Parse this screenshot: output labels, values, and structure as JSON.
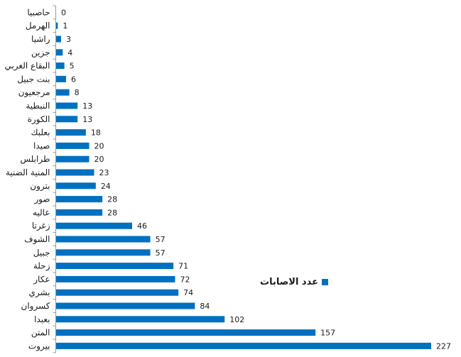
{
  "chart_data": {
    "type": "bar",
    "orientation": "horizontal",
    "categories": [
      "حاصبيا",
      "الهرمل",
      "راشيا",
      "جزين",
      "البقاع الغربي",
      "بنت جبيل",
      "مرجعيون",
      "النبطية",
      "الكورة",
      "بعلبك",
      "صيدا",
      "طرابلس",
      "المنية الضنية",
      "بترون",
      "صور",
      "عاليه",
      "زغرتا",
      "الشوف",
      "جبيل",
      "زحلة",
      "عكار",
      "بشري",
      "كسروان",
      "بعبدا",
      "المتن",
      "بيروت"
    ],
    "series": [
      {
        "name": "عدد الاصابات",
        "values": [
          0,
          1,
          3,
          4,
          5,
          6,
          8,
          13,
          13,
          18,
          20,
          20,
          23,
          24,
          28,
          28,
          46,
          57,
          57,
          71,
          72,
          74,
          84,
          102,
          157,
          227
        ],
        "color": "#0070c0"
      }
    ],
    "xlim": [
      0,
      227
    ],
    "grid": false,
    "legend_position": "right"
  }
}
